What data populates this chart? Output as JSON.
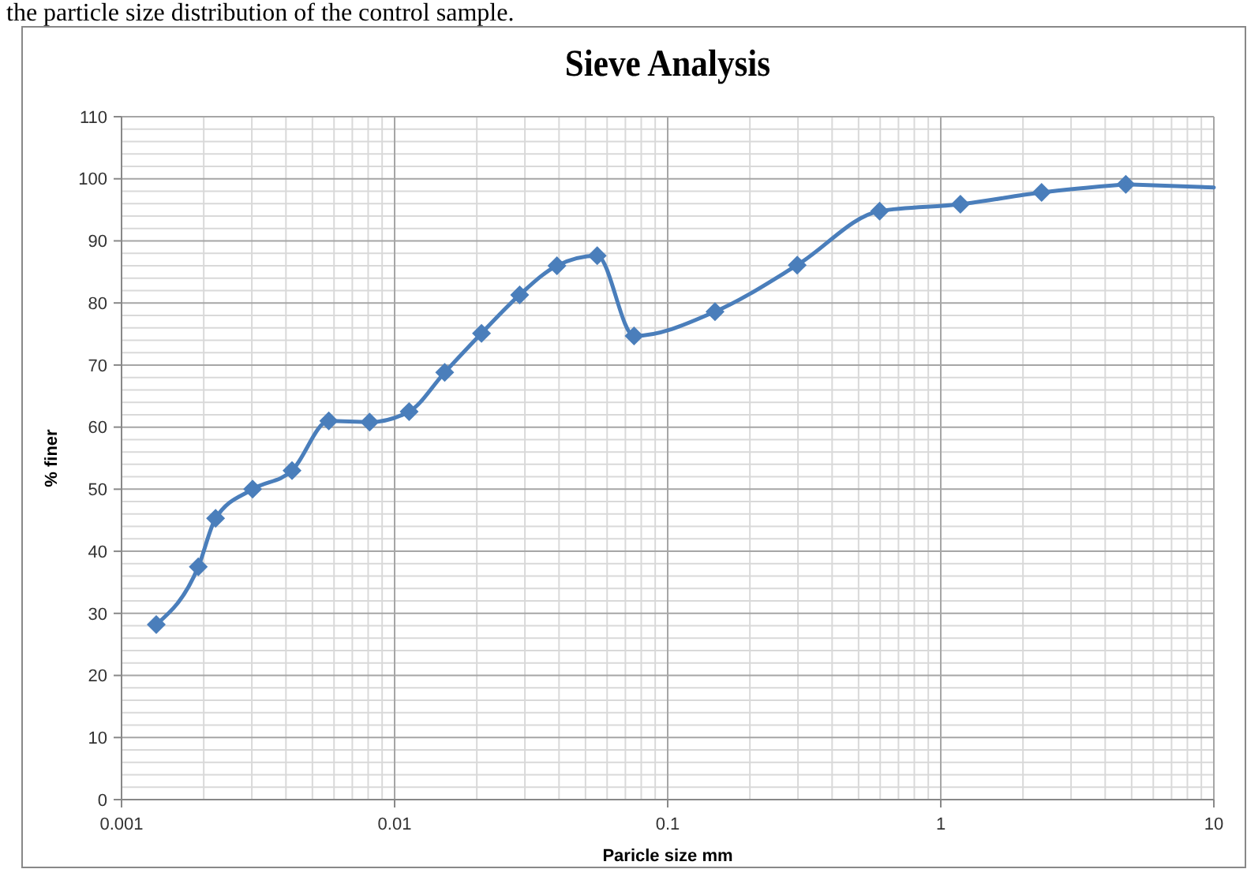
{
  "chart_data": {
    "type": "line",
    "title": "Sieve Analysis",
    "xlabel": "Paricle size mm",
    "ylabel": "% finer",
    "annotations": [
      "the particle size distribution of the control sample."
    ],
    "log": "x",
    "grid": true,
    "marker": "diamond",
    "line_style": "solid",
    "xlim": [
      0.001,
      10
    ],
    "xticks": [
      0.001,
      0.01,
      0.1,
      1,
      10
    ],
    "ylim": [
      0,
      110
    ],
    "yticks": [
      0,
      10,
      20,
      30,
      40,
      50,
      60,
      70,
      80,
      90,
      100,
      110
    ],
    "series": [
      {
        "color": "#4a7ebb",
        "x": [
          0.00134,
          0.00191,
          0.00221,
          0.00302,
          0.00421,
          0.00574,
          0.0081,
          0.0113,
          0.01525,
          0.0208,
          0.0287,
          0.0393,
          0.0552,
          0.0753,
          0.149,
          0.298,
          0.597,
          1.18,
          2.34,
          4.76
        ],
        "values": [
          28.2,
          37.5,
          45.3,
          50,
          53,
          61,
          60.8,
          62.5,
          68.8,
          75.1,
          81.3,
          86,
          87.6,
          74.7,
          78.6,
          86.1,
          94.8,
          95.9,
          97.8,
          99.1
        ]
      },
      {
        "color": "#4a7ebb",
        "marker": "none",
        "x": [
          4.76,
          10
        ],
        "values": [
          99.1,
          98.6
        ]
      }
    ]
  }
}
